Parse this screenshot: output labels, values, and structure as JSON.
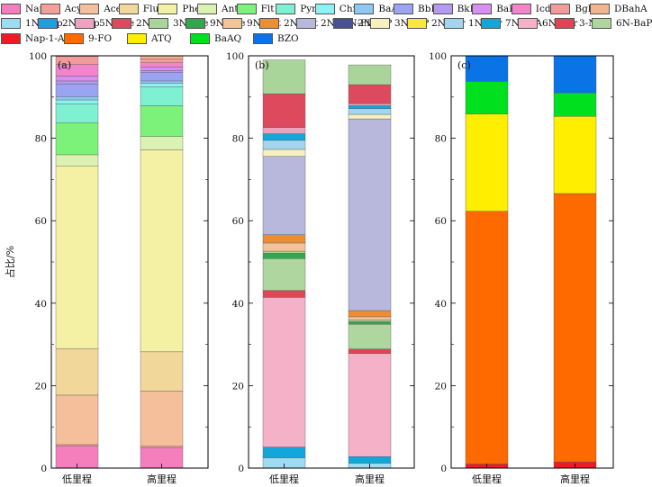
{
  "legend": [
    {
      "name": "Nap",
      "color": "#f57fbd"
    },
    {
      "name": "Acy",
      "color": "#f4a09a"
    },
    {
      "name": "Ace",
      "color": "#f6bf9c"
    },
    {
      "name": "Flu",
      "color": "#f2d79b"
    },
    {
      "name": "Phe",
      "color": "#f4f1a4"
    },
    {
      "name": "Ant",
      "color": "#dcf2b3"
    },
    {
      "name": "Flt",
      "color": "#7cf27a"
    },
    {
      "name": "Pyr",
      "color": "#7ff0d2"
    },
    {
      "name": "Chr",
      "color": "#8df2f4"
    },
    {
      "name": "BaA",
      "color": "#8ec8f2"
    },
    {
      "name": "BbF",
      "color": "#9aa4f2"
    },
    {
      "name": "BkF",
      "color": "#b59af2"
    },
    {
      "name": "BaP",
      "color": "#d98ef2"
    },
    {
      "name": "IcdP",
      "color": "#f285cc"
    },
    {
      "name": "BghiP",
      "color": "#f29b9b"
    },
    {
      "name": "DBahA",
      "color": "#f2b48f"
    },
    {
      "name": "1N-Nap",
      "color": "#9fdcf2"
    },
    {
      "name": "2N-Nap",
      "color": "#1ca0dc"
    },
    {
      "name": "5N-Ace",
      "color": "#eda2c2"
    },
    {
      "name": "2N-Flu",
      "color": "#de4a5d"
    },
    {
      "name": "3N-Phe",
      "color": "#a9d59a"
    },
    {
      "name": "9N-Phe",
      "color": "#2fa84f"
    },
    {
      "name": "9N-Ant",
      "color": "#f2c29b"
    },
    {
      "name": "2N-Ant",
      "color": "#ef8d33"
    },
    {
      "name": "2N+3N-Flt",
      "color": "#b7b8db"
    },
    {
      "name": "2N-BIP",
      "color": "#4a4f9c"
    },
    {
      "name": "3N-BIP",
      "color": "#f7f1c1"
    },
    {
      "name": "2N-Pyr",
      "color": "#f7e83a"
    },
    {
      "name": "1N-Pyr",
      "color": "#a3d5ef"
    },
    {
      "name": "7N-BaA",
      "color": "#12a6da"
    },
    {
      "name": "6N-Chr",
      "color": "#f4b1c8"
    },
    {
      "name": "3-NBA",
      "color": "#e04555"
    },
    {
      "name": "6N-BaP",
      "color": "#b0d6a0"
    },
    {
      "name": "Nap-1-ALD",
      "color": "#ec1c24"
    },
    {
      "name": "9-FO",
      "color": "#ff6a00"
    },
    {
      "name": "ATQ",
      "color": "#ffee00"
    },
    {
      "name": "BaAQ",
      "color": "#00e01e"
    },
    {
      "name": "BZO",
      "color": "#0a74e6"
    }
  ],
  "chart_data": [
    {
      "type": "bar",
      "stacked": true,
      "panel_label": "(a)",
      "ylabel": "占比/%",
      "ylim": [
        0,
        100
      ],
      "yticks": [
        0,
        20,
        40,
        60,
        80,
        100
      ],
      "categories": [
        "低里程",
        "高里程"
      ],
      "grid": false,
      "series": [
        {
          "name": "Nap",
          "values": [
            5.4,
            5.0
          ]
        },
        {
          "name": "Acy",
          "values": [
            0.3,
            0.3
          ]
        },
        {
          "name": "Ace",
          "values": [
            12.0,
            13.4
          ]
        },
        {
          "name": "Flu",
          "values": [
            11.3,
            9.5
          ]
        },
        {
          "name": "Phe",
          "values": [
            44.3,
            49.0
          ]
        },
        {
          "name": "Ant",
          "values": [
            2.7,
            3.2
          ]
        },
        {
          "name": "Flt",
          "values": [
            7.8,
            7.5
          ]
        },
        {
          "name": "Pyr",
          "values": [
            4.5,
            4.6
          ]
        },
        {
          "name": "Chr",
          "values": [
            1.0,
            0.8
          ]
        },
        {
          "name": "BaA",
          "values": [
            0.8,
            0.6
          ]
        },
        {
          "name": "BbF",
          "values": [
            3.1,
            2.0
          ]
        },
        {
          "name": "BkF",
          "values": [
            0.7,
            0.5
          ]
        },
        {
          "name": "BaP",
          "values": [
            1.2,
            0.9
          ]
        },
        {
          "name": "IcdP",
          "values": [
            2.8,
            1.0
          ]
        },
        {
          "name": "BghiP",
          "values": [
            2.0,
            1.0
          ]
        },
        {
          "name": "DBahA",
          "values": [
            0.1,
            0.7
          ]
        }
      ]
    },
    {
      "type": "bar",
      "stacked": true,
      "panel_label": "(b)",
      "ylim": [
        0,
        100
      ],
      "yticks": [
        0,
        20,
        40,
        60,
        80,
        100
      ],
      "categories": [
        "低里程",
        "高里程"
      ],
      "grid": false,
      "series": [
        {
          "name": "1N-Nap",
          "values": [
            2.5,
            1.2
          ]
        },
        {
          "name": "2N-Nap",
          "values": [
            0.0,
            0.0
          ]
        },
        {
          "name": "7N-BaA",
          "values": [
            2.6,
            1.6
          ]
        },
        {
          "name": "6N-Chr",
          "values": [
            36.3,
            25.0
          ]
        },
        {
          "name": "3-NBA",
          "values": [
            1.7,
            1.1
          ]
        },
        {
          "name": "6N-BaP",
          "values": [
            7.7,
            6.0
          ]
        },
        {
          "name": "9N-Phe",
          "values": [
            1.3,
            0.6
          ]
        },
        {
          "name": "3N-Phe",
          "values": [
            0.5,
            0.4
          ]
        },
        {
          "name": "9N-Ant",
          "values": [
            2.0,
            0.8
          ]
        },
        {
          "name": "2N-Ant",
          "values": [
            2.0,
            1.5
          ]
        },
        {
          "name": "2N+3N-Flt",
          "values": [
            19.0,
            46.5
          ]
        },
        {
          "name": "3N-BIP",
          "values": [
            1.7,
            1.1
          ]
        },
        {
          "name": "2N-Pyr",
          "values": [
            0.0,
            0.0
          ]
        },
        {
          "name": "1N-Pyr",
          "values": [
            2.2,
            1.4
          ]
        },
        {
          "name": "7N-BaA",
          "values": [
            1.6,
            0.7
          ]
        },
        {
          "name": "5N-Ace",
          "values": [
            1.5,
            0.5
          ]
        },
        {
          "name": "2N-Flu",
          "values": [
            8.2,
            4.6
          ]
        },
        {
          "name": "3N-Phe",
          "values": [
            8.2,
            4.8
          ]
        }
      ]
    },
    {
      "type": "bar",
      "stacked": true,
      "panel_label": "(c)",
      "ylim": [
        0,
        100
      ],
      "yticks": [
        0,
        20,
        40,
        60,
        80,
        100
      ],
      "categories": [
        "低里程",
        "高里程"
      ],
      "grid": false,
      "series": [
        {
          "name": "Nap-1-ALD",
          "values": [
            1.0,
            1.5
          ]
        },
        {
          "name": "9-FO",
          "values": [
            61.3,
            65.1
          ]
        },
        {
          "name": "ATQ",
          "values": [
            23.6,
            18.7
          ]
        },
        {
          "name": "BaAQ",
          "values": [
            7.9,
            5.7
          ]
        },
        {
          "name": "BZO",
          "values": [
            6.2,
            9.0
          ]
        }
      ]
    }
  ]
}
